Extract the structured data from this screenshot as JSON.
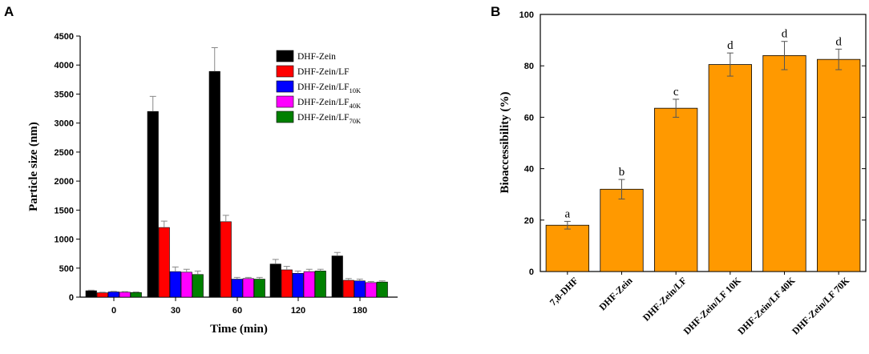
{
  "chart_data": [
    {
      "panel": "A",
      "type": "bar",
      "title": "",
      "xlabel": "Time (min)",
      "ylabel": "Particle size (nm)",
      "ylim": [
        0,
        4500
      ],
      "yticks": [
        "0",
        "500",
        "1000",
        "1500",
        "2000",
        "2500",
        "3000",
        "3500",
        "4000",
        "4500"
      ],
      "categories": [
        "0",
        "30",
        "60",
        "120",
        "180"
      ],
      "legend_position": "top-right",
      "series": [
        {
          "name": "DHF-Zein",
          "sub": "",
          "color": "#000000",
          "values": [
            110,
            3200,
            3890,
            570,
            710
          ],
          "errors": [
            10,
            260,
            410,
            80,
            60
          ]
        },
        {
          "name": "DHF-Zein/LF",
          "sub": "",
          "color": "#ff0000",
          "values": [
            75,
            1200,
            1300,
            470,
            290
          ],
          "errors": [
            10,
            110,
            110,
            60,
            30
          ]
        },
        {
          "name": "DHF-Zein/LF",
          "sub": "10K",
          "color": "#0000ff",
          "values": [
            90,
            440,
            310,
            410,
            280
          ],
          "errors": [
            10,
            80,
            30,
            40,
            30
          ]
        },
        {
          "name": "DHF-Zein/LF",
          "sub": "40K",
          "color": "#ff00ff",
          "values": [
            85,
            430,
            320,
            440,
            250
          ],
          "errors": [
            10,
            50,
            20,
            40,
            20
          ]
        },
        {
          "name": "DHF-Zein/LF",
          "sub": "70K",
          "color": "#008000",
          "values": [
            80,
            390,
            310,
            450,
            260
          ],
          "errors": [
            10,
            60,
            30,
            30,
            20
          ]
        }
      ]
    },
    {
      "panel": "B",
      "type": "bar",
      "title": "",
      "xlabel": "",
      "ylabel": "Bioaccessibility (%)",
      "ylim": [
        0,
        100
      ],
      "yticks": [
        "0",
        "20",
        "40",
        "60",
        "80",
        "100"
      ],
      "categories": [
        "7,8-DHF",
        "DHF-Zein",
        "DHF-Zein/LF",
        "DHF-Zein/LF 10K",
        "DHF-Zein/LF 40K",
        "DHF-Zein/LF 70K"
      ],
      "color": "#ff9900",
      "values": [
        18,
        32,
        63.5,
        80.5,
        84,
        82.5
      ],
      "errors": [
        1.5,
        3.8,
        3.5,
        4.5,
        5.5,
        4
      ],
      "annotations": [
        "a",
        "b",
        "c",
        "d",
        "d",
        "d"
      ]
    }
  ]
}
